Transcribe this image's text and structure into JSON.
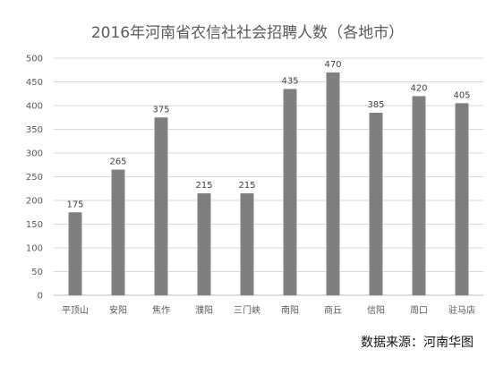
{
  "chart_data": {
    "type": "bar",
    "title": "2016年河南省农信社社会招聘人数（各地市）",
    "categories": [
      "平顶山",
      "安阳",
      "焦作",
      "濮阳",
      "三门峡",
      "南阳",
      "商丘",
      "信阳",
      "周口",
      "驻马店"
    ],
    "values": [
      175,
      265,
      375,
      215,
      215,
      435,
      470,
      385,
      420,
      405
    ],
    "ylim": [
      0,
      500
    ],
    "yticks": [
      0,
      50,
      100,
      150,
      200,
      250,
      300,
      350,
      400,
      450,
      500
    ],
    "grid": true,
    "bar_color": "#7f7f7f"
  },
  "source_text": "数据来源：河南华图"
}
